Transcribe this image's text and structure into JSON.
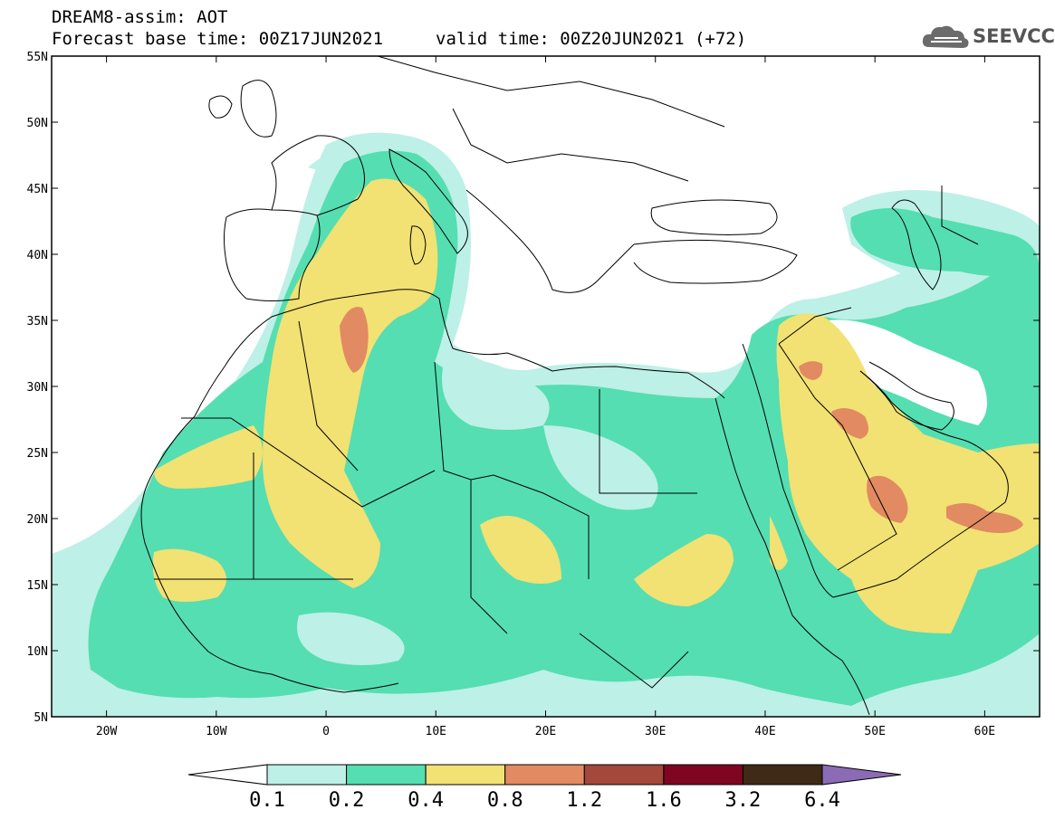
{
  "header": {
    "title": "DREAM8-assim: AOT",
    "base_time": "Forecast base time: 00Z17JUN2021",
    "valid_time": "valid time: 00Z20JUN2021 (+72)",
    "logo_text": "SEEVCCC"
  },
  "axes": {
    "lat_labels": [
      "55N",
      "50N",
      "45N",
      "40N",
      "35N",
      "30N",
      "25N",
      "20N",
      "15N",
      "10N",
      "5N"
    ],
    "lon_labels": [
      "20W",
      "10W",
      "0",
      "10E",
      "20E",
      "30E",
      "40E",
      "50E",
      "60E"
    ],
    "lon_range": [
      -25,
      65
    ],
    "lat_range": [
      5,
      55
    ]
  },
  "colorbar": {
    "labels": [
      "0.1",
      "0.2",
      "0.4",
      "0.8",
      "1.2",
      "1.6",
      "3.2",
      "6.4"
    ],
    "colors": [
      "#ffffff",
      "#bdf0e6",
      "#55deb1",
      "#f2e173",
      "#e28a62",
      "#a3483a",
      "#800521",
      "#3e2a17",
      "#8b6bb5"
    ]
  },
  "colors": {
    "very_light": "#bdf0e6",
    "green": "#55deb1",
    "yellow": "#f2e173",
    "orange": "#e28a62",
    "border": "#000000"
  }
}
